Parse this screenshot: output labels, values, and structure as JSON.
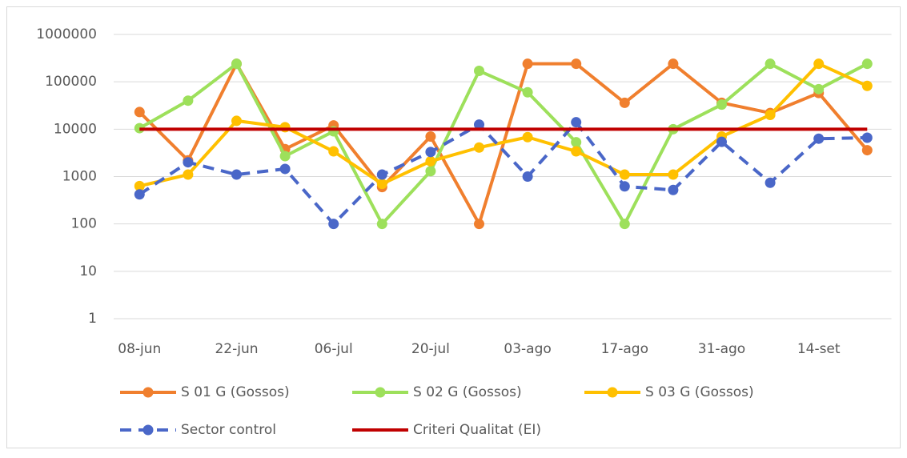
{
  "chart_data": {
    "type": "line",
    "categories": [
      "08-jun",
      null,
      "22-jun",
      null,
      "06-jul",
      null,
      "20-jul",
      null,
      "03-ago",
      null,
      "17-ago",
      null,
      "31-ago",
      null,
      "14-set",
      null
    ],
    "series": [
      {
        "name": "S 01 G (Gossos)",
        "color": "#f07f2e",
        "marker": true,
        "dashed": false,
        "values": [
          23000,
          2200,
          240000,
          3800,
          12000,
          600,
          7000,
          100,
          240000,
          240000,
          36000,
          240000,
          36000,
          22000,
          58000,
          3600
        ]
      },
      {
        "name": "S 02 G (Gossos)",
        "color": "#9de05b",
        "marker": true,
        "dashed": false,
        "values": [
          10500,
          40000,
          240000,
          2700,
          9000,
          100,
          1300,
          170000,
          60000,
          5300,
          100,
          10000,
          33000,
          240000,
          70000,
          240000
        ]
      },
      {
        "name": "S 03 G (Gossos)",
        "color": "#ffc000",
        "marker": true,
        "dashed": false,
        "values": [
          630,
          1100,
          15000,
          11000,
          3400,
          700,
          2100,
          4100,
          6800,
          3400,
          1100,
          1100,
          7000,
          20000,
          240000,
          82000
        ]
      },
      {
        "name": "Sector control",
        "color": "#4a67c8",
        "marker": true,
        "dashed": true,
        "values": [
          420,
          2000,
          1100,
          1450,
          100,
          1100,
          3300,
          12500,
          1000,
          14000,
          620,
          520,
          5400,
          740,
          6300,
          6600
        ]
      },
      {
        "name": "Criteri Qualitat (EI)",
        "color": "#c00000",
        "marker": false,
        "dashed": false,
        "values": [
          10000,
          10000,
          10000,
          10000,
          10000,
          10000,
          10000,
          10000,
          10000,
          10000,
          10000,
          10000,
          10000,
          10000,
          10000,
          10000
        ]
      }
    ],
    "ylim": [
      1,
      1000000
    ],
    "yticks": [
      1,
      10,
      100,
      1000,
      10000,
      100000,
      1000000
    ],
    "log_scale": true,
    "grid": true,
    "legend": "bottom"
  }
}
